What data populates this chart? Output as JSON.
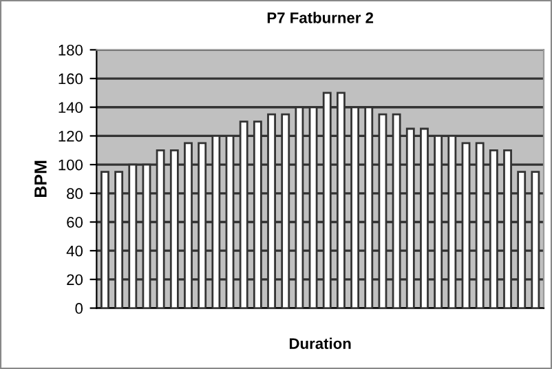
{
  "chart_data": {
    "type": "bar",
    "title": "P7 Fatburner 2",
    "xlabel": "Duration",
    "ylabel": "BPM",
    "categories": [
      null,
      null,
      null,
      null,
      null,
      null,
      null,
      null,
      null,
      null,
      null,
      null,
      null,
      null,
      null,
      null,
      null,
      null,
      null,
      null,
      null,
      null,
      null,
      null,
      null,
      null,
      null,
      null,
      null,
      null,
      null,
      null
    ],
    "values": [
      95,
      95,
      100,
      100,
      110,
      110,
      115,
      115,
      120,
      120,
      130,
      130,
      135,
      135,
      140,
      140,
      150,
      150,
      140,
      140,
      135,
      135,
      125,
      125,
      120,
      120,
      115,
      115,
      110,
      110,
      95,
      95
    ],
    "color": "#ffffff",
    "ylim": [
      0,
      180
    ],
    "yticks": [
      0,
      20,
      40,
      60,
      80,
      100,
      120,
      140,
      160,
      180
    ],
    "grid": "y"
  }
}
